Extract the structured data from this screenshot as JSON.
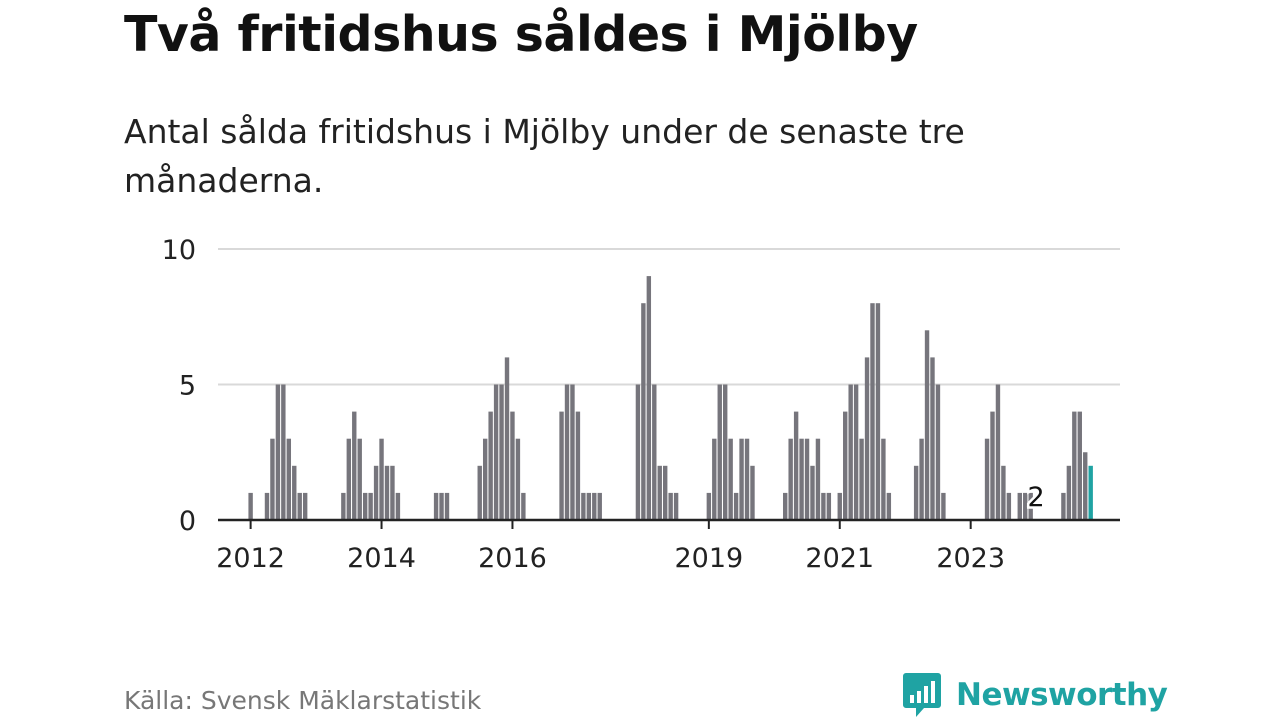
{
  "title": "Två fritidshus såldes i Mjölby",
  "subtitle": "Antal sålda fritidshus i Mjölby under de senaste tre månaderna.",
  "source": "Källa: Svensk Mäklarstatistik",
  "brand": {
    "name": "Newsworthy",
    "icon": "newsworthy-logo-icon",
    "color": "#1fa3a3"
  },
  "colors": {
    "bar": "#76757c",
    "highlight": "#1fa3a3",
    "grid": "#d9d9d9",
    "axis": "#222222"
  },
  "chart_data": {
    "type": "bar",
    "title": "Två fritidshus såldes i Mjölby",
    "xlabel": "",
    "ylabel": "",
    "ylim": [
      0,
      10
    ],
    "yticks": [
      0,
      5,
      10
    ],
    "grid": true,
    "start": "2011-09",
    "xticks": [
      {
        "label": "2012",
        "month": "2012-01"
      },
      {
        "label": "2014",
        "month": "2014-01"
      },
      {
        "label": "2016",
        "month": "2016-01"
      },
      {
        "label": "2019",
        "month": "2019-01"
      },
      {
        "label": "2021",
        "month": "2021-01"
      },
      {
        "label": "2023",
        "month": "2023-01"
      }
    ],
    "annotation": {
      "text": "2",
      "month": "2024-01"
    },
    "series": [
      {
        "values": [
          0,
          0,
          0,
          0,
          1,
          0,
          0,
          1,
          3,
          5,
          5,
          3,
          2,
          1,
          1,
          0,
          0,
          0,
          0,
          0,
          0,
          1,
          3,
          4,
          3,
          1,
          1,
          2,
          3,
          2,
          2,
          1,
          0,
          0,
          0,
          0,
          0,
          0,
          1,
          1,
          1,
          0,
          0,
          0,
          0,
          0,
          2,
          3,
          4,
          5,
          5,
          6,
          4,
          3,
          1,
          0,
          0,
          0,
          0,
          0,
          0,
          4,
          5,
          5,
          4,
          1,
          1,
          1,
          1,
          0,
          0,
          0,
          0,
          0,
          0,
          5,
          8,
          9,
          5,
          2,
          2,
          1,
          1,
          0,
          0,
          0,
          0,
          0,
          1,
          3,
          5,
          5,
          3,
          1,
          3,
          3,
          2,
          0,
          0,
          0,
          0,
          0,
          1,
          3,
          4,
          3,
          3,
          2,
          3,
          1,
          1,
          0,
          1,
          4,
          5,
          5,
          3,
          6,
          8,
          8,
          3,
          1,
          0,
          0,
          0,
          0,
          2,
          3,
          7,
          6,
          5,
          1,
          0,
          0,
          0,
          0,
          0,
          0,
          0,
          3,
          4,
          5,
          2,
          1,
          0,
          1,
          1,
          1,
          0,
          0,
          0,
          0,
          0,
          1,
          2,
          4,
          4,
          2.5,
          2
        ]
      }
    ]
  }
}
